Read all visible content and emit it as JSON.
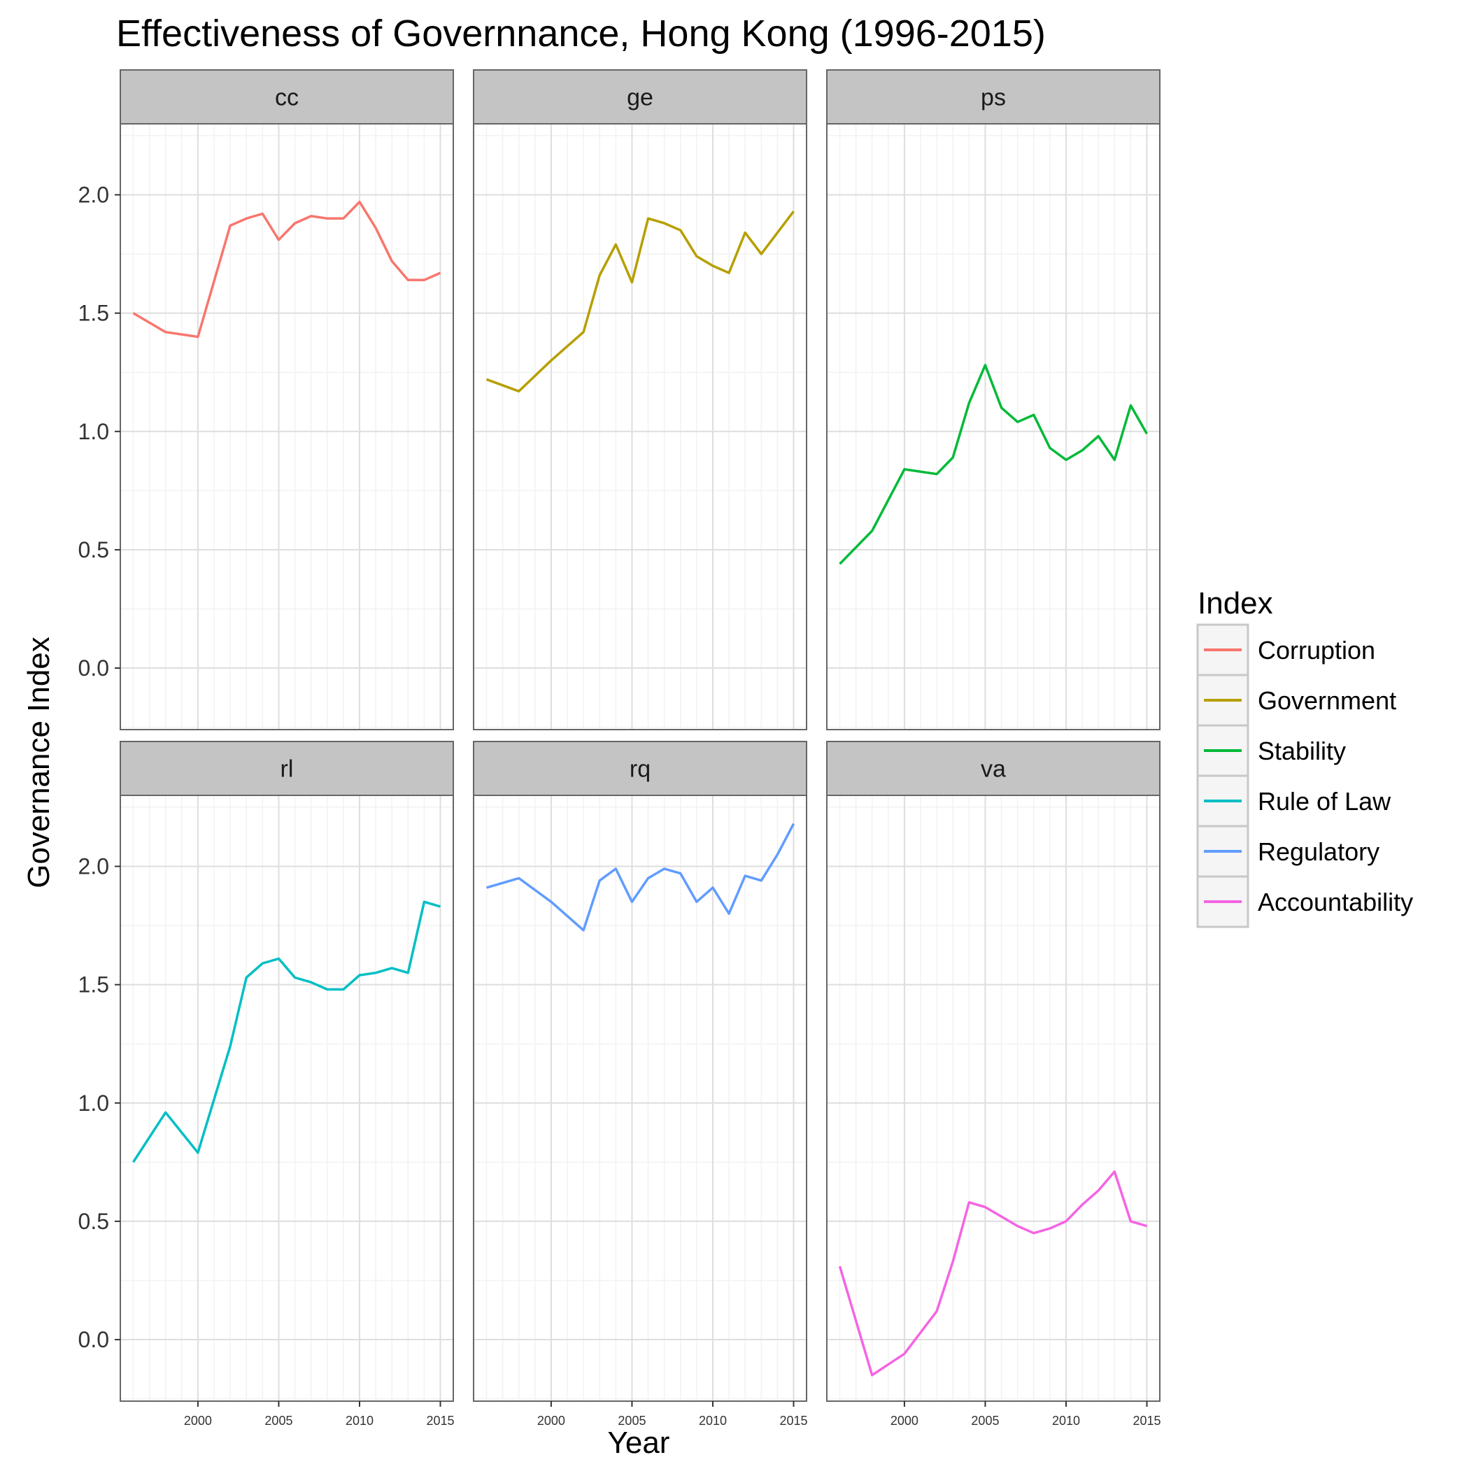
{
  "chart_data": {
    "type": "line",
    "title": "Effectiveness of Governnance, Hong Kong (1996-2015)",
    "xlabel": "Year",
    "ylabel": "Governance Index",
    "xlim": [
      1995.2,
      2015.8
    ],
    "ylim": [
      -0.26,
      2.3
    ],
    "x_ticks": [
      2000,
      2005,
      2010,
      2015
    ],
    "y_ticks": [
      0.0,
      0.5,
      1.0,
      1.5,
      2.0
    ],
    "y_tick_labels": [
      "0.0",
      "0.5",
      "1.0",
      "1.5",
      "2.0"
    ],
    "x_tick_labels": [
      "2000",
      "2005",
      "2010",
      "2015"
    ],
    "grid": true,
    "legend_position": "right",
    "legend_title": "Index",
    "x": [
      1996,
      1998,
      2000,
      2002,
      2003,
      2004,
      2005,
      2006,
      2007,
      2008,
      2009,
      2010,
      2011,
      2012,
      2013,
      2014,
      2015
    ],
    "series": [
      {
        "panel": "cc",
        "name": "Corruption",
        "color": "#F8766D",
        "values": [
          1.5,
          1.42,
          1.4,
          1.87,
          1.9,
          1.92,
          1.81,
          1.88,
          1.91,
          1.9,
          1.9,
          1.97,
          1.86,
          1.72,
          1.64,
          1.64,
          1.67
        ]
      },
      {
        "panel": "ge",
        "name": "Government",
        "color": "#B79F00",
        "values": [
          1.22,
          1.17,
          1.3,
          1.42,
          1.66,
          1.79,
          1.63,
          1.9,
          1.88,
          1.85,
          1.74,
          1.7,
          1.67,
          1.84,
          1.75,
          1.84,
          1.93
        ]
      },
      {
        "panel": "ps",
        "name": "Stability",
        "color": "#00BA38",
        "values": [
          0.44,
          0.58,
          0.84,
          0.82,
          0.89,
          1.12,
          1.28,
          1.1,
          1.04,
          1.07,
          0.93,
          0.88,
          0.92,
          0.98,
          0.88,
          1.11,
          0.99
        ]
      },
      {
        "panel": "rl",
        "name": "Rule of Law",
        "color": "#00BFC4",
        "values": [
          0.75,
          0.96,
          0.79,
          1.24,
          1.53,
          1.59,
          1.61,
          1.53,
          1.51,
          1.48,
          1.48,
          1.54,
          1.55,
          1.57,
          1.55,
          1.85,
          1.83
        ]
      },
      {
        "panel": "rq",
        "name": "Regulatory",
        "color": "#619CFF",
        "values": [
          1.91,
          1.95,
          1.85,
          1.73,
          1.94,
          1.99,
          1.85,
          1.95,
          1.99,
          1.97,
          1.85,
          1.91,
          1.8,
          1.96,
          1.94,
          2.05,
          2.18
        ]
      },
      {
        "panel": "va",
        "name": "Accountability",
        "color": "#F564E3",
        "values": [
          0.31,
          -0.15,
          -0.06,
          0.12,
          0.33,
          0.58,
          0.56,
          0.52,
          0.48,
          0.45,
          0.47,
          0.5,
          0.57,
          0.63,
          0.71,
          0.5,
          0.48
        ]
      }
    ]
  }
}
